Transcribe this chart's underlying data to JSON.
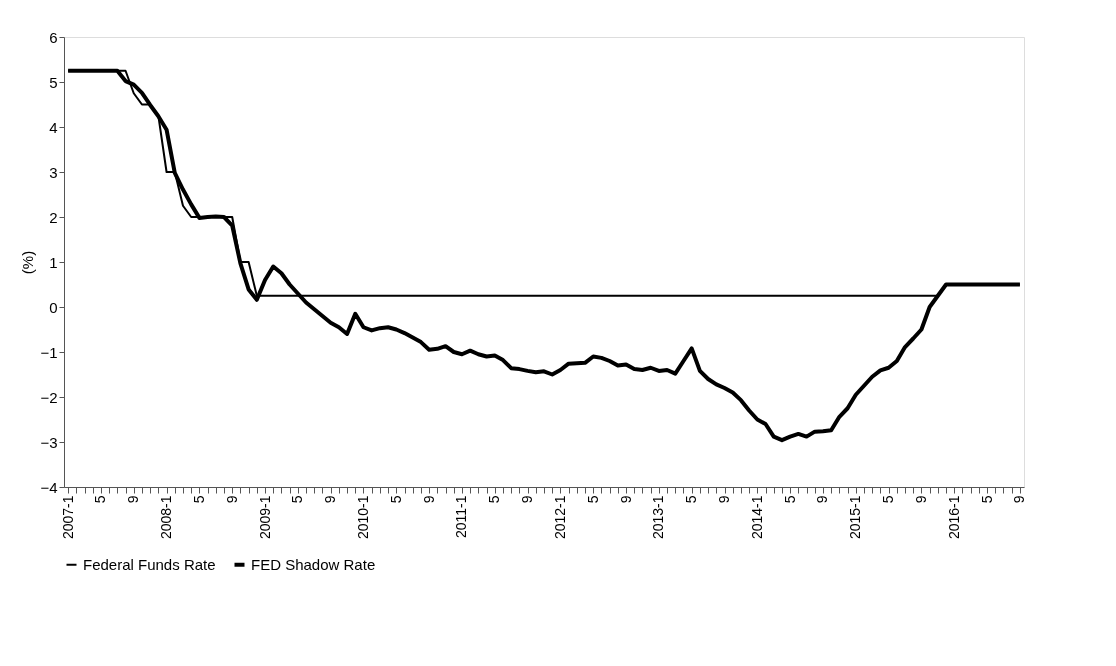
{
  "chart_data": {
    "type": "line",
    "ylabel": "(%)",
    "categories": [
      "2007-1",
      null,
      null,
      null,
      "5",
      null,
      null,
      null,
      "9",
      null,
      null,
      null,
      "2008-1",
      null,
      null,
      null,
      "5",
      null,
      null,
      null,
      "9",
      null,
      null,
      null,
      "2009-1",
      null,
      null,
      null,
      "5",
      null,
      null,
      null,
      "9",
      null,
      null,
      null,
      "2010-1",
      null,
      null,
      null,
      "5",
      null,
      null,
      null,
      "9",
      null,
      null,
      null,
      "2011-1",
      null,
      null,
      null,
      "5",
      null,
      null,
      null,
      "9",
      null,
      null,
      null,
      "2012-1",
      null,
      null,
      null,
      "5",
      null,
      null,
      null,
      "9",
      null,
      null,
      null,
      "2013-1",
      null,
      null,
      null,
      "5",
      null,
      null,
      null,
      "9",
      null,
      null,
      null,
      "2014-1",
      null,
      null,
      null,
      "5",
      null,
      null,
      null,
      "9",
      null,
      null,
      null,
      "2015-1",
      null,
      null,
      null,
      "5",
      null,
      null,
      null,
      "9",
      null,
      null,
      null,
      "2016-1",
      null,
      null,
      null,
      "5",
      null,
      null,
      null,
      "9"
    ],
    "series": [
      {
        "name": "Federal Funds Rate",
        "color": "#000000",
        "values": [
          5.25,
          5.25,
          5.25,
          5.25,
          5.25,
          5.25,
          5.25,
          5.25,
          4.75,
          4.5,
          4.5,
          4.25,
          3.0,
          3.0,
          2.25,
          2.0,
          2.0,
          2.0,
          2.0,
          2.0,
          2.0,
          1.0,
          1.0,
          0.25,
          0.25,
          0.25,
          0.25,
          0.25,
          0.25,
          0.25,
          0.25,
          0.25,
          0.25,
          0.25,
          0.25,
          0.25,
          0.25,
          0.25,
          0.25,
          0.25,
          0.25,
          0.25,
          0.25,
          0.25,
          0.25,
          0.25,
          0.25,
          0.25,
          0.25,
          0.25,
          0.25,
          0.25,
          0.25,
          0.25,
          0.25,
          0.25,
          0.25,
          0.25,
          0.25,
          0.25,
          0.25,
          0.25,
          0.25,
          0.25,
          0.25,
          0.25,
          0.25,
          0.25,
          0.25,
          0.25,
          0.25,
          0.25,
          0.25,
          0.25,
          0.25,
          0.25,
          0.25,
          0.25,
          0.25,
          0.25,
          0.25,
          0.25,
          0.25,
          0.25,
          0.25,
          0.25,
          0.25,
          0.25,
          0.25,
          0.25,
          0.25,
          0.25,
          0.25,
          0.25,
          0.25,
          0.25,
          0.25,
          0.25,
          0.25,
          0.25,
          0.25,
          0.25,
          0.25,
          0.25,
          0.25,
          0.25,
          0.25,
          0.5,
          0.5,
          0.5,
          0.5,
          0.5,
          0.5,
          0.5,
          0.5,
          0.5,
          0.5
        ]
      },
      {
        "name": "FED Shadow Rate",
        "color": "#000000",
        "values": [
          5.25,
          5.25,
          5.25,
          5.25,
          5.25,
          5.25,
          5.25,
          5.02,
          4.94,
          4.76,
          4.49,
          4.24,
          3.94,
          2.98,
          2.61,
          2.28,
          1.98,
          2.0,
          2.01,
          2.0,
          1.81,
          0.97,
          0.39,
          0.16,
          0.6,
          0.9,
          0.75,
          0.5,
          0.3,
          0.1,
          -0.05,
          -0.2,
          -0.35,
          -0.45,
          -0.6,
          -0.15,
          -0.45,
          -0.52,
          -0.47,
          -0.45,
          -0.5,
          -0.58,
          -0.68,
          -0.78,
          -0.95,
          -0.93,
          -0.87,
          -1.0,
          -1.05,
          -0.97,
          -1.05,
          -1.1,
          -1.08,
          -1.18,
          -1.36,
          -1.38,
          -1.42,
          -1.45,
          -1.43,
          -1.5,
          -1.4,
          -1.26,
          -1.25,
          -1.24,
          -1.1,
          -1.13,
          -1.2,
          -1.3,
          -1.28,
          -1.38,
          -1.4,
          -1.35,
          -1.42,
          -1.4,
          -1.48,
          -1.2,
          -0.92,
          -1.42,
          -1.6,
          -1.72,
          -1.8,
          -1.9,
          -2.07,
          -2.3,
          -2.5,
          -2.6,
          -2.88,
          -2.96,
          -2.88,
          -2.82,
          -2.88,
          -2.77,
          -2.76,
          -2.74,
          -2.44,
          -2.25,
          -1.95,
          -1.75,
          -1.55,
          -1.41,
          -1.35,
          -1.2,
          -0.89,
          -0.7,
          -0.5,
          0.0,
          0.25,
          0.5,
          0.5,
          0.5,
          0.5,
          0.5,
          0.5,
          0.5,
          0.5,
          0.5,
          0.5
        ]
      }
    ],
    "ylim": [
      -4,
      6
    ],
    "yticks": [
      -4,
      -3,
      -2,
      -1,
      0,
      1,
      2,
      3,
      4,
      5,
      6
    ],
    "grid": false,
    "legend": "bottom"
  }
}
